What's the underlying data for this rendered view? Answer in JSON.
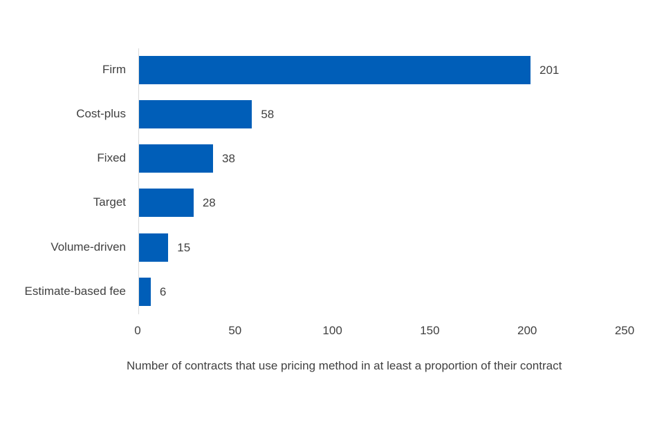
{
  "chart_data": {
    "type": "bar",
    "orientation": "horizontal",
    "title": "",
    "categories": [
      "Firm",
      "Cost-plus",
      "Fixed",
      "Target",
      "Volume-driven",
      "Estimate-based fee"
    ],
    "values": [
      201,
      58,
      38,
      28,
      15,
      6
    ],
    "data_labels": [
      "201",
      "58",
      "38",
      "28",
      "15",
      "6"
    ],
    "xlabel": "Number of contracts that use pricing method in at least a proportion of their contract",
    "ylabel": "",
    "xlim": [
      0,
      250
    ],
    "x_ticks": [
      "0",
      "50",
      "100",
      "150",
      "200",
      "250"
    ],
    "grid": false,
    "legend": null,
    "bar_color": "#005eb8"
  }
}
